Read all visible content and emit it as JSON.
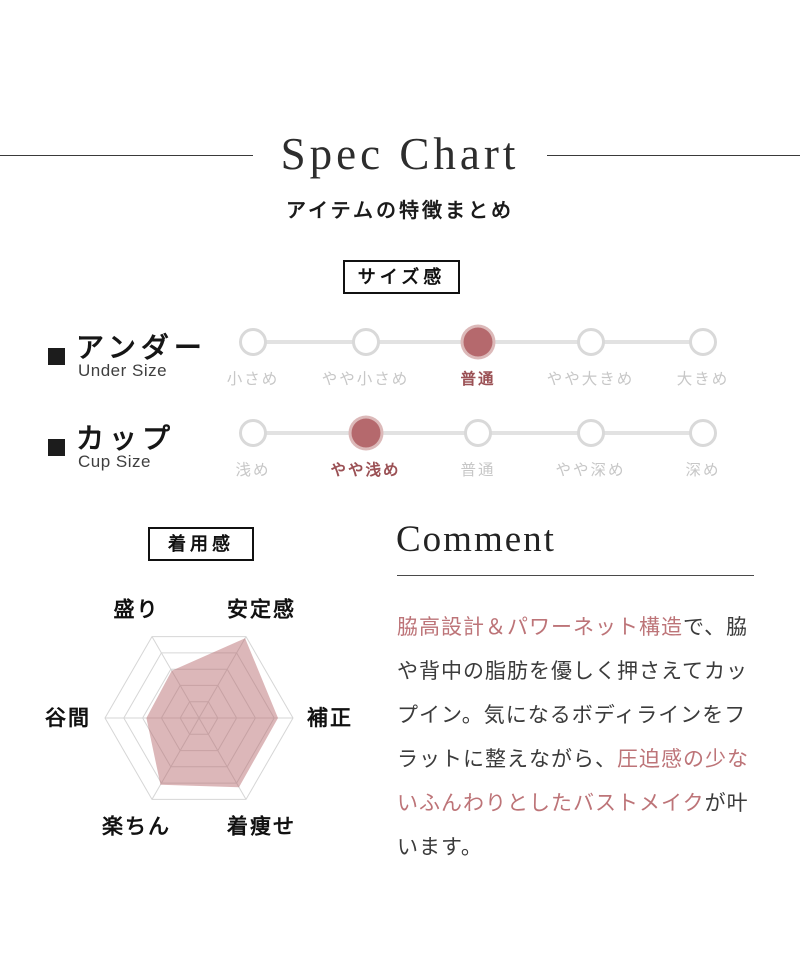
{
  "header": {
    "title": "Spec Chart",
    "subtitle": "アイテムの特徴まとめ"
  },
  "size_section": {
    "badge": "サイズ感",
    "rows": [
      {
        "label": "アンダー",
        "label_en": "Under Size",
        "options": [
          "小さめ",
          "やや小さめ",
          "普通",
          "やや大きめ",
          "大きめ"
        ],
        "selected_index": 2
      },
      {
        "label": "カップ",
        "label_en": "Cup Size",
        "options": [
          "浅め",
          "やや浅め",
          "普通",
          "やや深め",
          "深め"
        ],
        "selected_index": 1
      }
    ]
  },
  "fit_section": {
    "badge": "着用感"
  },
  "chart_data": {
    "type": "radar",
    "title": "着用感 (wearing feel radar)",
    "categories": [
      "盛り",
      "安定感",
      "補正",
      "着痩せ",
      "楽ちん",
      "谷間"
    ],
    "values": [
      2.9,
      4.9,
      4.2,
      4.25,
      4.1,
      2.8
    ],
    "max": 5,
    "rings": 5,
    "angles_deg": [
      120,
      60,
      0,
      -60,
      -120,
      180
    ],
    "grid": true,
    "legend": "none",
    "fill_color": "#b5696d",
    "fill_opacity": 0.48,
    "grid_color": "#d6d6d6"
  },
  "comment": {
    "heading": "Comment",
    "segments": [
      {
        "text": "脇高設計＆パワーネット構造",
        "highlight": true
      },
      {
        "text": "で、脇や背中の脂肪を優しく押さえてカップイン。気になるボディラインをフラットに整えながら、",
        "highlight": false
      },
      {
        "text": "圧迫感の少ないふんわりとしたバストメイク",
        "highlight": true
      },
      {
        "text": "が叶います。",
        "highlight": false
      }
    ]
  },
  "colors": {
    "accent": "#b5696d",
    "accent_ring": "#dcb9b9",
    "selected_label": "#9b5155",
    "highlight_text": "#bd7478",
    "muted_label": "#c7c7c7",
    "scale_line": "#e2e2e2",
    "circle_border": "#d9d9d9",
    "grid": "#d6d6d6",
    "text": "#3b3b3b"
  }
}
